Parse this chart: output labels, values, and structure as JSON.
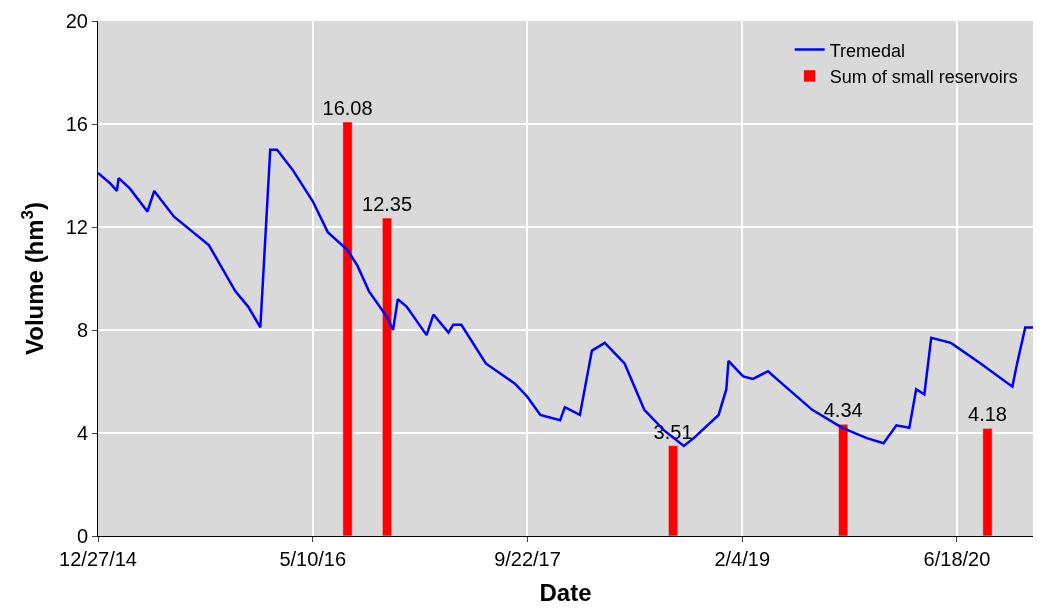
{
  "chart_data": {
    "type": "line",
    "xlabel": "Date",
    "ylabel": "Volume (hm$^{3}$)",
    "xlim": [
      "2014-12-27",
      "2020-12-12"
    ],
    "ylim": [
      0,
      20
    ],
    "xticks": [
      {
        "value": "2014-12-27",
        "label": "12/27/14"
      },
      {
        "value": "2016-05-10",
        "label": "5/10/16"
      },
      {
        "value": "2017-09-22",
        "label": "9/22/17"
      },
      {
        "value": "2019-02-04",
        "label": "2/4/19"
      },
      {
        "value": "2020-06-18",
        "label": "6/18/20"
      }
    ],
    "yticks": [
      0,
      4,
      8,
      12,
      16,
      20
    ],
    "grid": true,
    "legend": "top right",
    "marker": "none",
    "line_style": "solid",
    "series": [
      {
        "name": "Tremedal",
        "color": "#0000ff",
        "x": [
          "2014-12-27",
          "2015-01-24",
          "2015-02-09",
          "2015-02-13",
          "2015-03-11",
          "2015-04-21",
          "2015-05-07",
          "2015-06-22",
          "2015-09-11",
          "2015-11-12",
          "2015-12-12",
          "2016-01-09",
          "2016-02-01",
          "2016-02-17",
          "2016-03-25",
          "2016-05-10",
          "2016-06-14",
          "2016-07-30",
          "2016-08-22",
          "2016-09-18",
          "2016-10-30",
          "2016-11-13",
          "2016-11-24",
          "2016-12-15",
          "2017-01-30",
          "2017-02-15",
          "2017-03-22",
          "2017-04-02",
          "2017-04-21",
          "2017-06-17",
          "2017-08-25",
          "2017-09-22",
          "2017-10-22",
          "2017-12-07",
          "2017-12-18",
          "2018-01-22",
          "2018-02-19",
          "2018-03-21",
          "2018-05-06",
          "2018-06-21",
          "2018-08-06",
          "2018-09-21",
          "2018-10-14",
          "2018-12-11",
          "2018-12-29",
          "2019-01-03",
          "2019-02-06",
          "2019-03-01",
          "2019-04-05",
          "2019-05-09",
          "2019-07-17",
          "2019-09-25",
          "2019-11-21",
          "2019-12-30",
          "2020-01-29",
          "2020-02-28",
          "2020-03-15",
          "2020-04-03",
          "2020-04-19",
          "2020-06-04",
          "2020-08-12",
          "2020-10-25",
          "2020-11-05",
          "2020-11-24",
          "2020-12-12"
        ],
        "values": [
          14.1,
          13.7,
          13.4,
          13.9,
          13.5,
          12.6,
          13.4,
          12.4,
          11.3,
          9.5,
          8.9,
          8.1,
          15.0,
          15.0,
          14.2,
          13.0,
          11.8,
          11.1,
          10.5,
          9.5,
          8.5,
          8.0,
          9.2,
          8.9,
          7.8,
          8.6,
          7.9,
          8.2,
          8.2,
          6.7,
          5.9,
          5.4,
          4.7,
          4.5,
          5.0,
          4.7,
          7.2,
          7.5,
          6.7,
          4.9,
          4.1,
          3.5,
          3.8,
          4.7,
          5.7,
          6.8,
          6.2,
          6.1,
          6.4,
          5.9,
          4.9,
          4.2,
          3.8,
          3.6,
          4.3,
          4.2,
          5.7,
          5.5,
          7.7,
          7.5,
          6.7,
          5.8,
          6.7,
          8.1,
          8.1
        ]
      },
      {
        "name": "Sum of small reservoirs",
        "type": "bar",
        "color": "#ff0000",
        "data_labels": true,
        "x": [
          "2016-07-30",
          "2016-10-30",
          "2018-08-27",
          "2019-09-27",
          "2020-08-28"
        ],
        "values": [
          16.08,
          12.35,
          3.51,
          4.34,
          4.18
        ]
      }
    ]
  }
}
